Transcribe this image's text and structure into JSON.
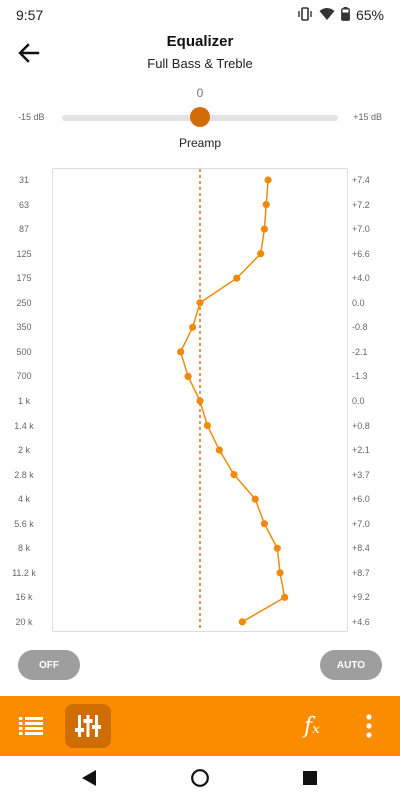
{
  "status_bar": {
    "time": "9:57",
    "battery": "65%",
    "icons": [
      "vibrate-icon",
      "wifi-icon",
      "battery-icon"
    ]
  },
  "header": {
    "title": "Equalizer",
    "subtitle": "Full Bass & Treble"
  },
  "preamp": {
    "value": "0",
    "min_label": "-15 dB",
    "max_label": "+15 dB",
    "label": "Preamp",
    "level_fraction": 0.5
  },
  "equalizer": {
    "gain_range": [
      -15,
      15
    ],
    "accent_color": "#f08a0c",
    "bands": [
      {
        "freq": "31",
        "gain": 7.4,
        "gain_label": "+7.4"
      },
      {
        "freq": "63",
        "gain": 7.2,
        "gain_label": "+7.2"
      },
      {
        "freq": "87",
        "gain": 7.0,
        "gain_label": "+7.0"
      },
      {
        "freq": "125",
        "gain": 6.6,
        "gain_label": "+6.6"
      },
      {
        "freq": "175",
        "gain": 4.0,
        "gain_label": "+4.0"
      },
      {
        "freq": "250",
        "gain": 0.0,
        "gain_label": "0.0"
      },
      {
        "freq": "350",
        "gain": -0.8,
        "gain_label": "-0.8"
      },
      {
        "freq": "500",
        "gain": -2.1,
        "gain_label": "-2.1"
      },
      {
        "freq": "700",
        "gain": -1.3,
        "gain_label": "-1.3"
      },
      {
        "freq": "1 k",
        "gain": 0.0,
        "gain_label": "0.0"
      },
      {
        "freq": "1.4 k",
        "gain": 0.8,
        "gain_label": "+0.8"
      },
      {
        "freq": "2 k",
        "gain": 2.1,
        "gain_label": "+2.1"
      },
      {
        "freq": "2.8 k",
        "gain": 3.7,
        "gain_label": "+3.7"
      },
      {
        "freq": "4 k",
        "gain": 6.0,
        "gain_label": "+6.0"
      },
      {
        "freq": "5.6 k",
        "gain": 7.0,
        "gain_label": "+7.0"
      },
      {
        "freq": "8 k",
        "gain": 8.4,
        "gain_label": "+8.4"
      },
      {
        "freq": "11.2 k",
        "gain": 8.7,
        "gain_label": "+8.7"
      },
      {
        "freq": "16 k",
        "gain": 9.2,
        "gain_label": "+9.2"
      },
      {
        "freq": "20 k",
        "gain": 4.6,
        "gain_label": "+4.6"
      }
    ]
  },
  "buttons": {
    "off": "OFF",
    "auto": "AUTO"
  },
  "toolbar": {
    "fx_label": "𝑓ₓ",
    "items": [
      "list-icon",
      "equalizer-icon",
      "effects-icon",
      "more-icon"
    ]
  },
  "nav": {
    "items": [
      "back-icon",
      "home-icon",
      "recent-apps-icon"
    ]
  }
}
